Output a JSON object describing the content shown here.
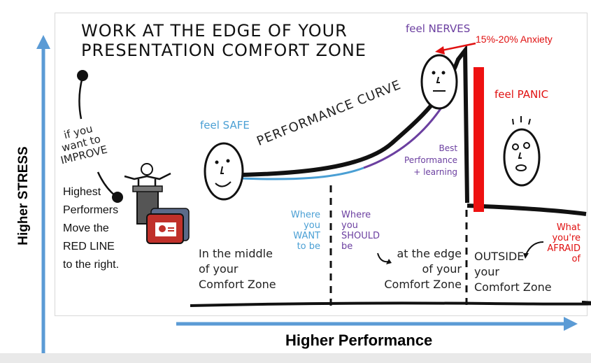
{
  "diagram": {
    "title_line1": "WORK AT THE EDGE OF YOUR",
    "title_line2": "PRESENTATION COMFORT ZONE",
    "y_axis_label": "Higher STRESS",
    "x_axis_label": "Higher Performance",
    "curve_label": "PERFORMANCE CURVE",
    "improve_note": [
      "if you",
      "want to",
      "IMPROVE"
    ],
    "highest_performers": [
      "Highest",
      "Performers",
      "Move the",
      "RED LINE",
      "to the right."
    ],
    "feel_safe": "feel SAFE",
    "feel_nerves": "feel NERVES",
    "anxiety": "15%-20% Anxiety",
    "feel_panic": "feel PANIC",
    "best_performance": [
      "Best",
      "Performance",
      "+ learning"
    ],
    "where_want": [
      "Where",
      "you",
      "WANT",
      "to be"
    ],
    "where_should": [
      "Where",
      "you",
      "SHOULD",
      "be"
    ],
    "what_afraid": [
      "What",
      "you're",
      "AFRAID",
      "of"
    ],
    "zone_middle": [
      "In the middle",
      "of your",
      "Comfort Zone"
    ],
    "zone_edge": [
      "at the edge",
      "of your",
      "Comfort Zone"
    ],
    "zone_outside": [
      "OUTSIDE",
      "your",
      "Comfort Zone"
    ],
    "colors": {
      "axis_blue": "#5b9bd5",
      "red_line": "#ee1111",
      "purple": "#6b3fa0",
      "blue_text": "#4a9fd4"
    }
  }
}
